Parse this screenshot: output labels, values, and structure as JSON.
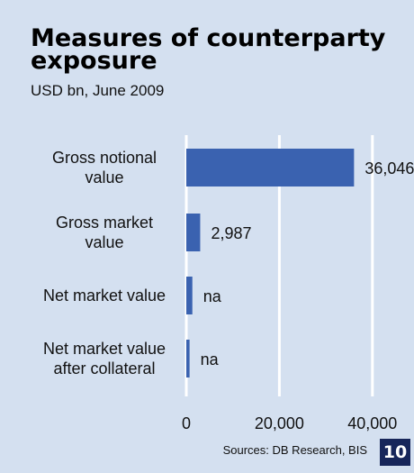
{
  "header": {
    "title": "Measures of counterparty exposure",
    "subtitle": "USD bn, June 2009"
  },
  "footer": {
    "source": "Sources: DB Research, BIS",
    "page_number": "10"
  },
  "colors": {
    "background": "#d4e0f0",
    "bar": "#3a62b0",
    "badge": "#17265a"
  },
  "chart_data": {
    "type": "bar",
    "orientation": "horizontal",
    "categories": [
      [
        "Gross notional",
        "value"
      ],
      [
        "Gross market",
        "value"
      ],
      [
        "Net market value"
      ],
      [
        "Net market value",
        "after collateral"
      ]
    ],
    "values": [
      36046,
      2987,
      1300,
      700
    ],
    "value_labels": [
      "36,046",
      "2,987",
      "na",
      "na"
    ],
    "xlim": [
      0,
      47000
    ],
    "xticks": [
      0,
      20000,
      40000
    ],
    "xtick_labels": [
      "0",
      "20,000",
      "40,000"
    ],
    "grid": "vertical",
    "legend": "none"
  }
}
